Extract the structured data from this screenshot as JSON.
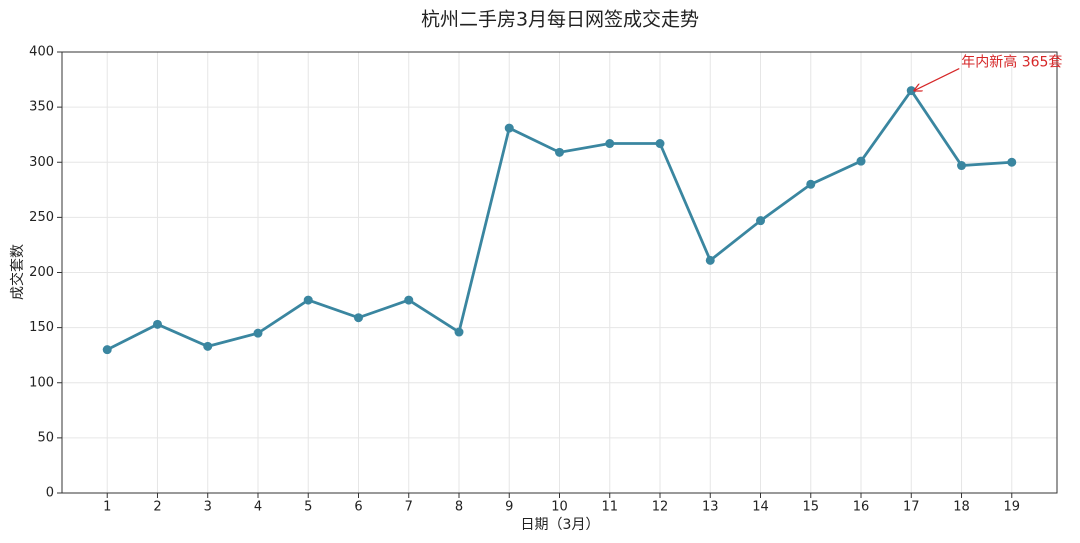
{
  "chart_data": {
    "type": "line",
    "title": "杭州二手房3月每日网签成交走势",
    "x_label": "日期（3月）",
    "y_label": "成交套数",
    "x": [
      1,
      2,
      3,
      4,
      5,
      6,
      7,
      8,
      9,
      10,
      11,
      12,
      13,
      14,
      15,
      16,
      17,
      18,
      19
    ],
    "series": [
      {
        "name": "成交套数",
        "color": "#3a86a0",
        "values": [
          130,
          153,
          133,
          145,
          175,
          159,
          175,
          146,
          331,
          309,
          317,
          317,
          211,
          247,
          280,
          301,
          365,
          297,
          300
        ]
      }
    ],
    "xlim": [
      0.1,
      19.9
    ],
    "xticks": [
      1,
      2,
      3,
      4,
      5,
      6,
      7,
      8,
      9,
      10,
      11,
      12,
      13,
      14,
      15,
      16,
      17,
      18,
      19
    ],
    "ylim": [
      0,
      400
    ],
    "yticks": [
      0,
      50,
      100,
      150,
      200,
      250,
      300,
      350,
      400
    ],
    "grid": true,
    "annotations": [
      {
        "text": "年内新高 365套",
        "x": 17,
        "y": 365,
        "color": "#d62728"
      }
    ]
  }
}
